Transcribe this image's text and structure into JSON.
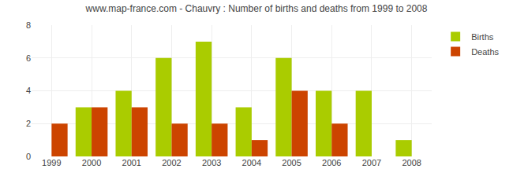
{
  "chart_data": {
    "type": "bar",
    "title": "www.map-france.com - Chauvry : Number of births and deaths from 1999 to 2008",
    "categories": [
      "1999",
      "2000",
      "2001",
      "2002",
      "2003",
      "2004",
      "2005",
      "2006",
      "2007",
      "2008"
    ],
    "series": [
      {
        "name": "Births",
        "color": "#aacc00",
        "values": [
          0,
          3,
          4,
          6,
          7,
          3,
          6,
          4,
          4,
          1
        ]
      },
      {
        "name": "Deaths",
        "color": "#cc4400",
        "values": [
          2,
          3,
          3,
          2,
          2,
          1,
          4,
          2,
          0,
          0
        ]
      }
    ],
    "ylim": [
      0,
      8
    ],
    "yticks": [
      0,
      2,
      4,
      6,
      8
    ],
    "grid": true,
    "legend": "upper right"
  }
}
